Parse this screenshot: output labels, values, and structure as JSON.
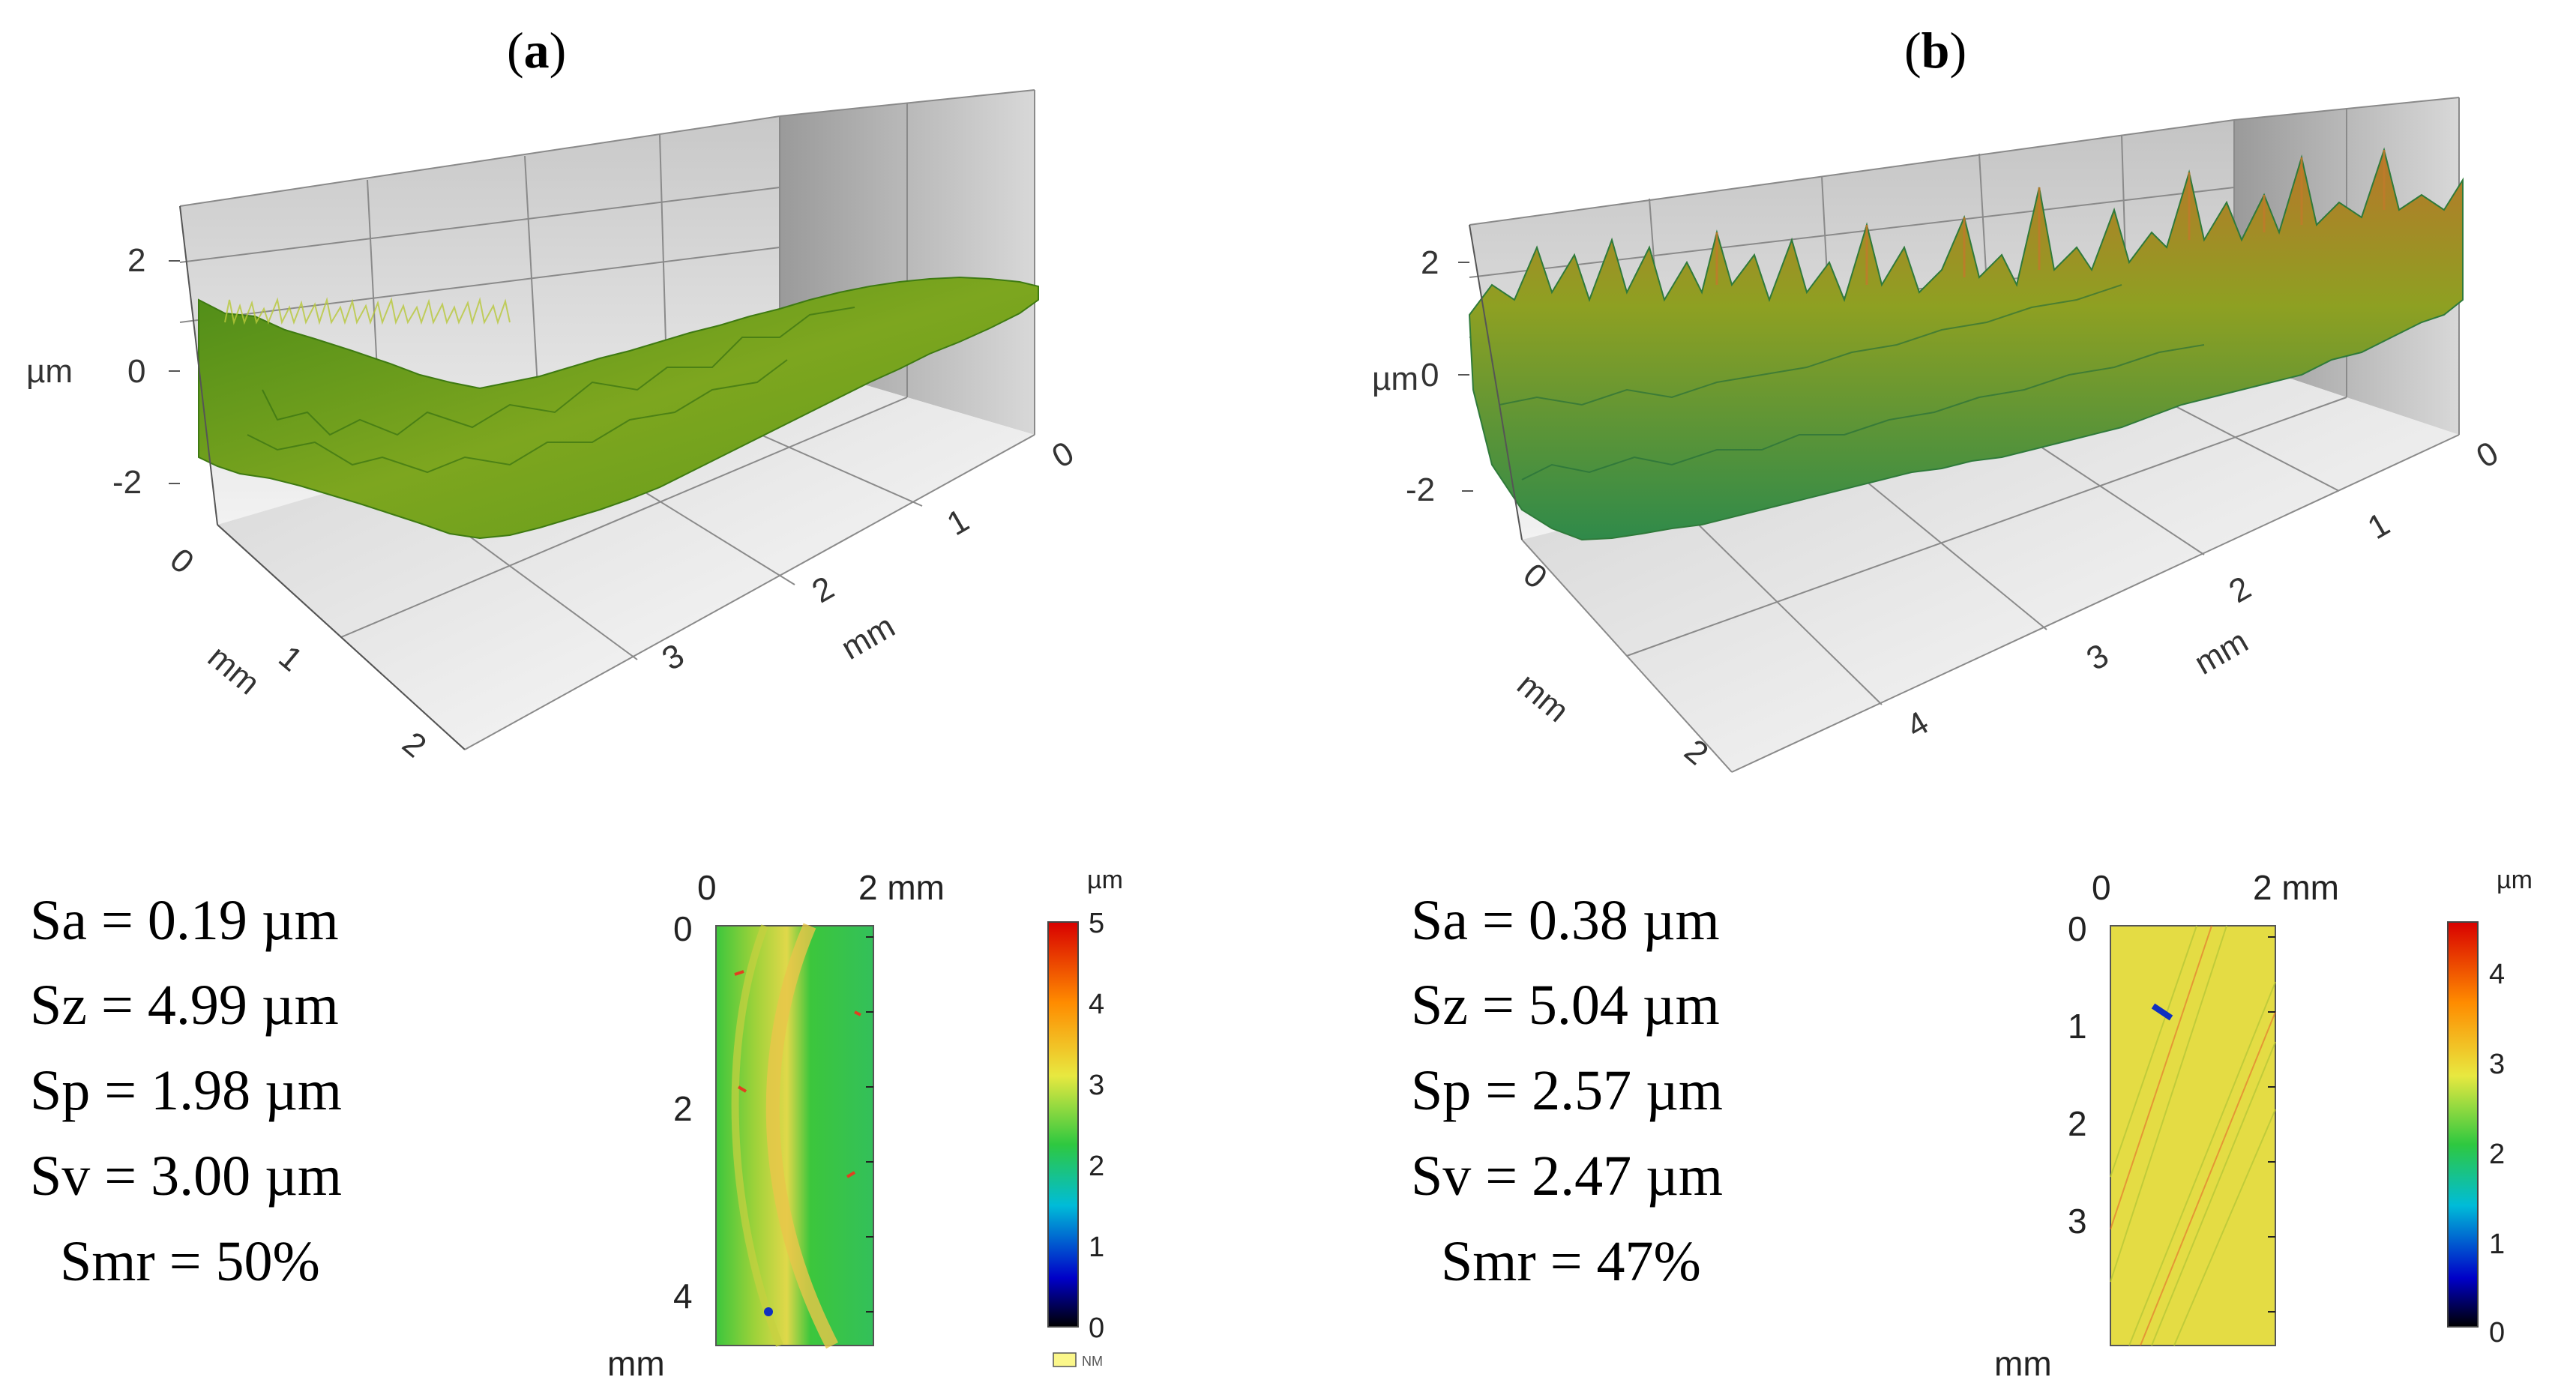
{
  "panels": [
    {
      "label_letter": "a",
      "surface3d": {
        "z_axis_unit": "µm",
        "z_ticks": [
          "2",
          "0",
          "-2"
        ],
        "x_axis_unit": "mm",
        "x_ticks": [
          "0",
          "1",
          "2"
        ],
        "y_axis_unit": "mm",
        "y_ticks": [
          "0",
          "1",
          "2",
          "3"
        ],
        "surface_colors": [
          "#3e7a12",
          "#6d9b1c",
          "#a8c02b"
        ]
      },
      "stats": [
        {
          "name": "Sa",
          "text": "Sa = 0.19 µm"
        },
        {
          "name": "Sz",
          "text": "Sz = 4.99 µm"
        },
        {
          "name": "Sp",
          "text": "Sp = 1.98 µm"
        },
        {
          "name": "Sv",
          "text": "Sv = 3.00 µm"
        },
        {
          "name": "Smr",
          "text": "Smr = 50%"
        }
      ],
      "heightmap": {
        "top_ticks": [
          "0",
          "2 mm"
        ],
        "left_ticks": [
          "0",
          "2",
          "4"
        ],
        "left_unit": "mm",
        "colorbar_unit": "µm",
        "colorbar_ticks": [
          "5",
          "4",
          "3",
          "2",
          "1",
          "0"
        ],
        "nm_label": "NM"
      }
    },
    {
      "label_letter": "b",
      "surface3d": {
        "z_axis_unit": "µm",
        "z_ticks": [
          "2",
          "0",
          "-2"
        ],
        "x_axis_unit": "mm",
        "x_ticks": [
          "0",
          "1",
          "2",
          "3",
          "4"
        ],
        "y_axis_unit": "mm",
        "y_ticks": [
          "0",
          "1",
          "2",
          "3",
          "4"
        ],
        "x_left_ticks": [
          "0",
          "2"
        ],
        "surface_colors": [
          "#2f7a3a",
          "#7a9a22",
          "#b8762a"
        ]
      },
      "stats": [
        {
          "name": "Sa",
          "text": "Sa = 0.38 µm"
        },
        {
          "name": "Sz",
          "text": "Sz = 5.04 µm"
        },
        {
          "name": "Sp",
          "text": "Sp = 2.57 µm"
        },
        {
          "name": "Sv",
          "text": "Sv = 2.47 µm"
        },
        {
          "name": "Smr",
          "text": "Smr = 47%"
        }
      ],
      "heightmap": {
        "top_ticks": [
          "0",
          "2 mm"
        ],
        "left_ticks": [
          "0",
          "1",
          "2",
          "3"
        ],
        "left_unit": "mm",
        "colorbar_unit": "µm",
        "colorbar_ticks": [
          "4",
          "3",
          "2",
          "1",
          "0"
        ]
      }
    }
  ]
}
